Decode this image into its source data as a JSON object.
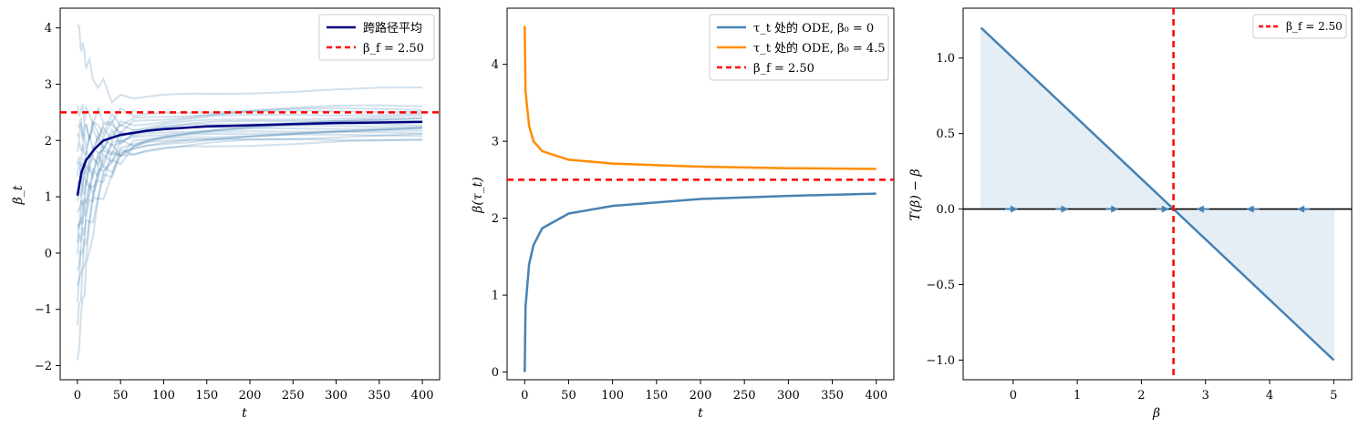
{
  "colors": {
    "path": "#4682b4",
    "mean": "#000080",
    "orange": "#ff8c00",
    "red": "#ff0000",
    "fill": "#dce7f1",
    "black": "#000000"
  },
  "chart_data": [
    {
      "type": "line",
      "xlabel": "t",
      "ylabel": "β_t",
      "xlim": [
        -20,
        420
      ],
      "ylim": [
        -2.25,
        4.35
      ],
      "xticks": [
        0,
        50,
        100,
        150,
        200,
        250,
        300,
        350,
        400
      ],
      "yticks": [
        -2,
        -1,
        0,
        1,
        2,
        3,
        4
      ],
      "hline": {
        "y": 2.5,
        "label": "β_f = 2.50"
      },
      "legend": {
        "position": "top-right",
        "entries": [
          "跨路径平均",
          "β_f = 2.50"
        ]
      },
      "series": [
        {
          "name": "跨路径平均",
          "x": [
            0,
            5,
            10,
            20,
            30,
            50,
            80,
            100,
            150,
            200,
            250,
            300,
            350,
            400
          ],
          "y": [
            1.02,
            1.45,
            1.65,
            1.85,
            2.0,
            2.1,
            2.17,
            2.2,
            2.25,
            2.27,
            2.29,
            2.31,
            2.32,
            2.33
          ]
        }
      ],
      "paths": [
        {
          "y0": 4.05,
          "final": 2.93
        },
        {
          "y0": 2.6,
          "final": 2.62
        },
        {
          "y0": 2.1,
          "final": 2.58
        },
        {
          "y0": 1.8,
          "final": 2.55
        },
        {
          "y0": 1.6,
          "final": 2.5
        },
        {
          "y0": 1.3,
          "final": 2.44
        },
        {
          "y0": 1.1,
          "final": 2.38
        },
        {
          "y0": 0.9,
          "final": 2.35
        },
        {
          "y0": 0.7,
          "final": 2.3
        },
        {
          "y0": 0.5,
          "final": 2.28
        },
        {
          "y0": 0.2,
          "final": 2.25
        },
        {
          "y0": 0.0,
          "final": 2.22
        },
        {
          "y0": -0.3,
          "final": 2.2
        },
        {
          "y0": -0.6,
          "final": 2.17
        },
        {
          "y0": -0.9,
          "final": 2.15
        },
        {
          "y0": -1.3,
          "final": 2.12
        },
        {
          "y0": -1.9,
          "final": 2.05
        },
        {
          "y0": 2.3,
          "final": 2.4
        },
        {
          "y0": 1.4,
          "final": 2.1
        },
        {
          "y0": 0.4,
          "final": 2.0
        }
      ]
    },
    {
      "type": "line",
      "xlabel": "t",
      "ylabel": "β(τ_t)",
      "xlim": [
        -20,
        420
      ],
      "ylim": [
        -0.1,
        4.73
      ],
      "xticks": [
        0,
        50,
        100,
        150,
        200,
        250,
        300,
        350,
        400
      ],
      "yticks": [
        0,
        1,
        2,
        3,
        4
      ],
      "hline": {
        "y": 2.5,
        "label": "β_f = 2.50"
      },
      "legend": {
        "position": "top-right",
        "entries": [
          "τ_t 处的 ODE,  β₀ = 0",
          "τ_t 处的 ODE,  β₀ = 4.5",
          "β_f = 2.50"
        ]
      },
      "series": [
        {
          "name": "τ_t 处的 ODE,  β₀ = 0",
          "x": [
            0,
            1,
            5,
            10,
            20,
            50,
            100,
            200,
            300,
            400
          ],
          "y": [
            0.0,
            0.85,
            1.4,
            1.65,
            1.87,
            2.06,
            2.16,
            2.25,
            2.29,
            2.32
          ]
        },
        {
          "name": "τ_t 处的 ODE,  β₀ = 4.5",
          "x": [
            0,
            1,
            5,
            10,
            20,
            50,
            100,
            200,
            300,
            400
          ],
          "y": [
            4.5,
            3.65,
            3.2,
            3.0,
            2.87,
            2.76,
            2.71,
            2.67,
            2.65,
            2.64
          ]
        }
      ]
    },
    {
      "type": "line",
      "xlabel": "β",
      "ylabel": "T(β) − β",
      "xlim": [
        -0.78,
        5.28
      ],
      "ylim": [
        -1.13,
        1.33
      ],
      "xticks": [
        0,
        1,
        2,
        3,
        4,
        5
      ],
      "yticks": [
        -1.0,
        -0.5,
        0.0,
        0.5,
        1.0
      ],
      "vline": {
        "x": 2.5,
        "label": "β_f = 2.50"
      },
      "legend": {
        "position": "top-right",
        "entries": [
          "β_f = 2.50"
        ]
      },
      "series": [
        {
          "name": "T(β) − β",
          "x": [
            -0.5,
            5.0
          ],
          "y": [
            1.2,
            -1.0
          ]
        }
      ],
      "arrows": [
        {
          "x": 0.0,
          "direction": "right"
        },
        {
          "x": 0.79,
          "direction": "right"
        },
        {
          "x": 1.57,
          "direction": "right"
        },
        {
          "x": 2.36,
          "direction": "right"
        },
        {
          "x": 2.93,
          "direction": "left"
        },
        {
          "x": 3.71,
          "direction": "left"
        },
        {
          "x": 4.5,
          "direction": "left"
        }
      ]
    }
  ],
  "charts_text": [
    {
      "xlabel": "t",
      "ylabel": "β_t",
      "xticks": [
        "0",
        "50",
        "100",
        "150",
        "200",
        "250",
        "300",
        "350",
        "400"
      ],
      "yticks": [
        "−2",
        "−1",
        "0",
        "1",
        "2",
        "3",
        "4"
      ],
      "legend": [
        "跨路径平均",
        "β_f = 2.50"
      ]
    },
    {
      "xlabel": "t",
      "ylabel": "β(τ_t)",
      "xticks": [
        "0",
        "50",
        "100",
        "150",
        "200",
        "250",
        "300",
        "350",
        "400"
      ],
      "yticks": [
        "0",
        "1",
        "2",
        "3",
        "4"
      ],
      "legend": [
        "τ_t 处的 ODE,  β₀ = 0",
        "τ_t 处的 ODE,  β₀ = 4.5",
        "β_f = 2.50"
      ]
    },
    {
      "xlabel": "β",
      "ylabel": "T(β) − β",
      "xticks": [
        "0",
        "1",
        "2",
        "3",
        "4",
        "5"
      ],
      "yticks": [
        "−1.0",
        "−0.5",
        "0.0",
        "0.5",
        "1.0"
      ],
      "legend": [
        "β_f = 2.50"
      ]
    }
  ]
}
